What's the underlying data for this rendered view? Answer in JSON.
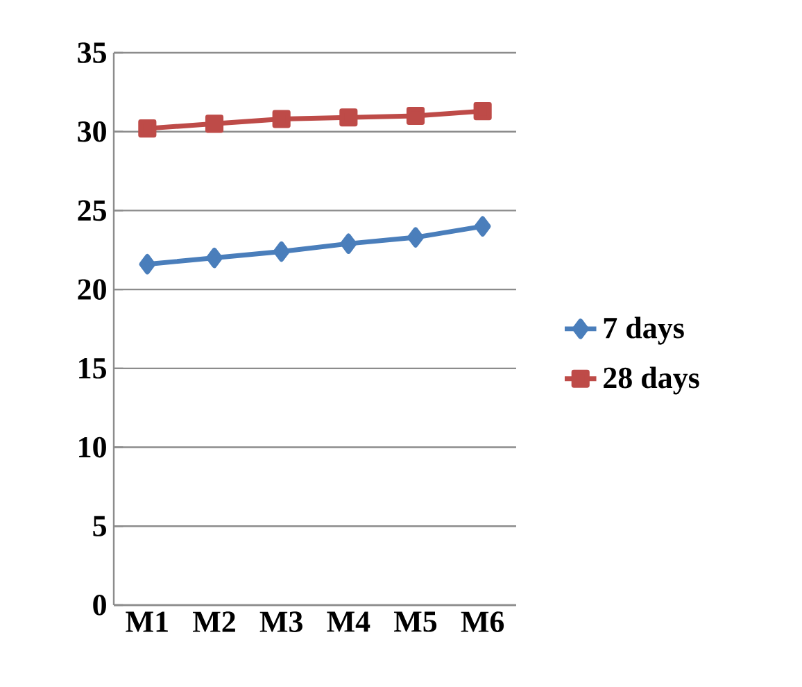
{
  "chart_data": {
    "type": "line",
    "categories": [
      "M1",
      "M2",
      "M3",
      "M4",
      "M5",
      "M6"
    ],
    "series": [
      {
        "name": "7 days",
        "color": "#4a7ebb",
        "marker": "diamond",
        "values": [
          21.6,
          22.0,
          22.4,
          22.9,
          23.3,
          24.0
        ]
      },
      {
        "name": "28 days",
        "color": "#be4b48",
        "marker": "square",
        "values": [
          30.2,
          30.5,
          30.8,
          30.9,
          31.0,
          31.3
        ]
      }
    ],
    "ylim": [
      0,
      35
    ],
    "yticks": [
      0,
      5,
      10,
      15,
      20,
      25,
      30,
      35
    ],
    "grid": "y",
    "legend": "right"
  }
}
